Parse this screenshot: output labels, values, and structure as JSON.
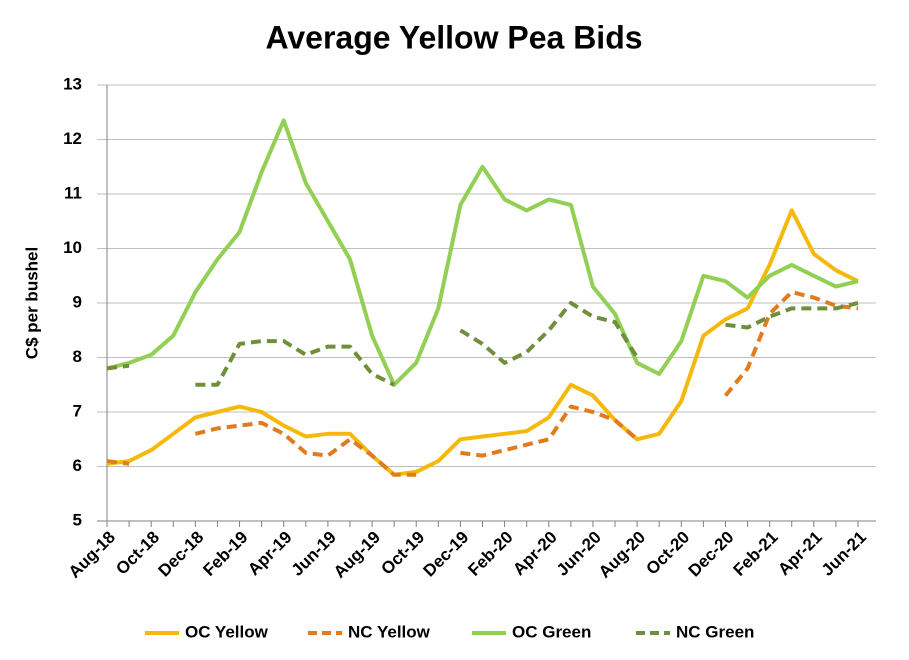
{
  "chart_data": {
    "type": "line",
    "title": "Average Yellow Pea Bids",
    "y_label": "C$ per bushel",
    "categories": [
      "Aug-18",
      null,
      "Oct-18",
      null,
      "Dec-18",
      null,
      "Feb-19",
      null,
      "Apr-19",
      null,
      "Jun-19",
      null,
      "Aug-19",
      null,
      "Oct-19",
      null,
      "Dec-19",
      null,
      "Feb-20",
      null,
      "Apr-20",
      null,
      "Jun-20",
      null,
      "Aug-20",
      null,
      "Oct-20",
      null,
      "Dec-20",
      null,
      "Feb-21",
      null,
      "Apr-21",
      null,
      "Jun-21"
    ],
    "series": [
      {
        "name": "OC Yellow",
        "color": "#f5b90c",
        "style": "solid",
        "values": [
          6.05,
          6.1,
          6.3,
          6.6,
          6.9,
          7.0,
          7.1,
          7.0,
          6.75,
          6.55,
          6.6,
          6.6,
          6.2,
          5.85,
          5.9,
          6.1,
          6.5,
          6.55,
          6.6,
          6.65,
          6.9,
          7.5,
          7.3,
          6.85,
          6.5,
          6.6,
          7.2,
          8.4,
          8.7,
          8.9,
          9.7,
          10.7,
          9.9,
          9.6,
          9.4
        ]
      },
      {
        "name": "NC Yellow",
        "color": "#e07b20",
        "style": "dashed",
        "values": [
          6.1,
          6.05,
          null,
          null,
          6.6,
          6.7,
          6.75,
          6.8,
          6.6,
          6.25,
          6.2,
          6.5,
          6.2,
          5.85,
          5.85,
          null,
          6.25,
          6.2,
          6.3,
          6.4,
          6.5,
          7.1,
          7.0,
          6.85,
          6.5,
          null,
          null,
          null,
          7.3,
          7.8,
          8.8,
          9.2,
          9.1,
          8.95,
          8.9
        ]
      },
      {
        "name": "OC Green",
        "color": "#92cf55",
        "style": "solid",
        "values": [
          7.8,
          7.9,
          8.05,
          8.4,
          9.2,
          9.8,
          10.3,
          11.4,
          12.35,
          11.2,
          10.5,
          9.8,
          8.4,
          7.5,
          7.9,
          8.9,
          10.8,
          11.5,
          10.9,
          10.7,
          10.9,
          10.8,
          9.3,
          8.8,
          7.9,
          7.7,
          8.3,
          9.5,
          9.4,
          9.1,
          9.5,
          9.7,
          9.5,
          9.3,
          9.4
        ]
      },
      {
        "name": "NC Green",
        "color": "#6f8f3a",
        "style": "dashed",
        "values": [
          7.8,
          7.85,
          null,
          null,
          7.5,
          7.5,
          8.25,
          8.3,
          8.3,
          8.05,
          8.2,
          8.2,
          7.7,
          7.5,
          null,
          null,
          8.5,
          8.25,
          7.9,
          8.1,
          8.5,
          9.0,
          8.75,
          8.65,
          8.0,
          null,
          null,
          null,
          8.6,
          8.55,
          8.75,
          8.9,
          8.9,
          8.9,
          9.0
        ]
      }
    ],
    "ylim": [
      5,
      13
    ],
    "yticks": [
      5,
      6,
      7,
      8,
      9,
      10,
      11,
      12,
      13
    ],
    "grid": true,
    "legend": "bottom"
  }
}
